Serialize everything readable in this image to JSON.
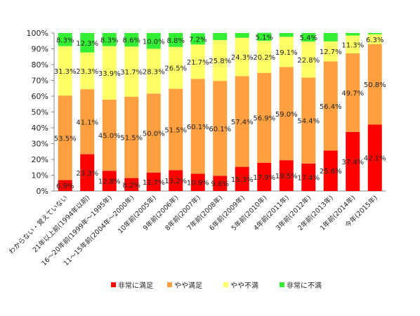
{
  "chart_data": {
    "type": "bar",
    "stacked": true,
    "percent": true,
    "categories": [
      "わからない・覚えていない",
      "21年以上前(1994年以前)",
      "16〜20年前(1999年〜1995年)",
      "11〜15年前(2004年〜2000年)",
      "10年前(2005年)",
      "9年前(2006年)",
      "8年前(2007年)",
      "7年前(2008年)",
      "6年前(2009年)",
      "5年前(2010年)",
      "4年前(2011年)",
      "3年前(2012年)",
      "2年前(2013年)",
      "1年前(2014年)",
      "今年(2015年)"
    ],
    "series": [
      {
        "name": "非常に満足",
        "color": "#ff0000",
        "values": [
          6.9,
          23.3,
          12.8,
          8.2,
          11.7,
          13.2,
          10.9,
          9.6,
          15.3,
          17.9,
          19.5,
          17.4,
          25.6,
          37.4,
          42.1
        ]
      },
      {
        "name": "やや満足",
        "color": "#ffa040",
        "values": [
          53.5,
          41.1,
          45.0,
          51.5,
          50.0,
          51.5,
          60.1,
          60.1,
          57.4,
          56.9,
          59.0,
          54.4,
          56.4,
          49.7,
          50.8
        ]
      },
      {
        "name": "やや不満",
        "color": "#ffff66",
        "values": [
          31.3,
          23.3,
          33.9,
          31.7,
          28.3,
          26.5,
          21.7,
          25.8,
          24.3,
          20.2,
          19.1,
          22.8,
          12.7,
          11.3,
          6.3
        ]
      },
      {
        "name": "非常に不満",
        "color": "#33ee33",
        "values": [
          8.3,
          12.3,
          8.3,
          8.6,
          10.0,
          8.8,
          7.2,
          4.5,
          3.0,
          5.1,
          2.4,
          5.4,
          5.3,
          1.6,
          0.8
        ]
      }
    ],
    "data_labels": [
      [
        "6.9%",
        "23.3%",
        "12.8%",
        "8.2%",
        "11.7%",
        "13.2%",
        "10.9%",
        "9.6%",
        "15.3%",
        "17.9%",
        "19.5%",
        "17.4%",
        "25.6%",
        "37.4%",
        "42.1%"
      ],
      [
        "53.5%",
        "41.1%",
        "45.0%",
        "51.5%",
        "50.0%",
        "51.5%",
        "60.1%",
        "60.1%",
        "57.4%",
        "56.9%",
        "59.0%",
        "54.4%",
        "56.4%",
        "49.7%",
        "50.8%"
      ],
      [
        "31.3%",
        "23.3%",
        "33.9%",
        "31.7%",
        "28.3%",
        "26.5%",
        "21.7%",
        "25.8%",
        "24.3%",
        "20.2%",
        "19.1%",
        "22.8%",
        "12.7%",
        "11.3%",
        "6.3%"
      ],
      [
        "8.3%",
        "12.3%",
        "8.3%",
        "8.6%",
        "10.0%",
        "8.8%",
        "7.2%",
        "",
        "",
        "5.1%",
        "",
        "5.4%",
        "",
        "",
        ""
      ]
    ],
    "yticks": [
      "0%",
      "10%",
      "20%",
      "30%",
      "40%",
      "50%",
      "60%",
      "70%",
      "80%",
      "90%",
      "100%"
    ],
    "ylim": [
      0,
      100
    ],
    "grid": false,
    "legend_position": "bottom"
  }
}
